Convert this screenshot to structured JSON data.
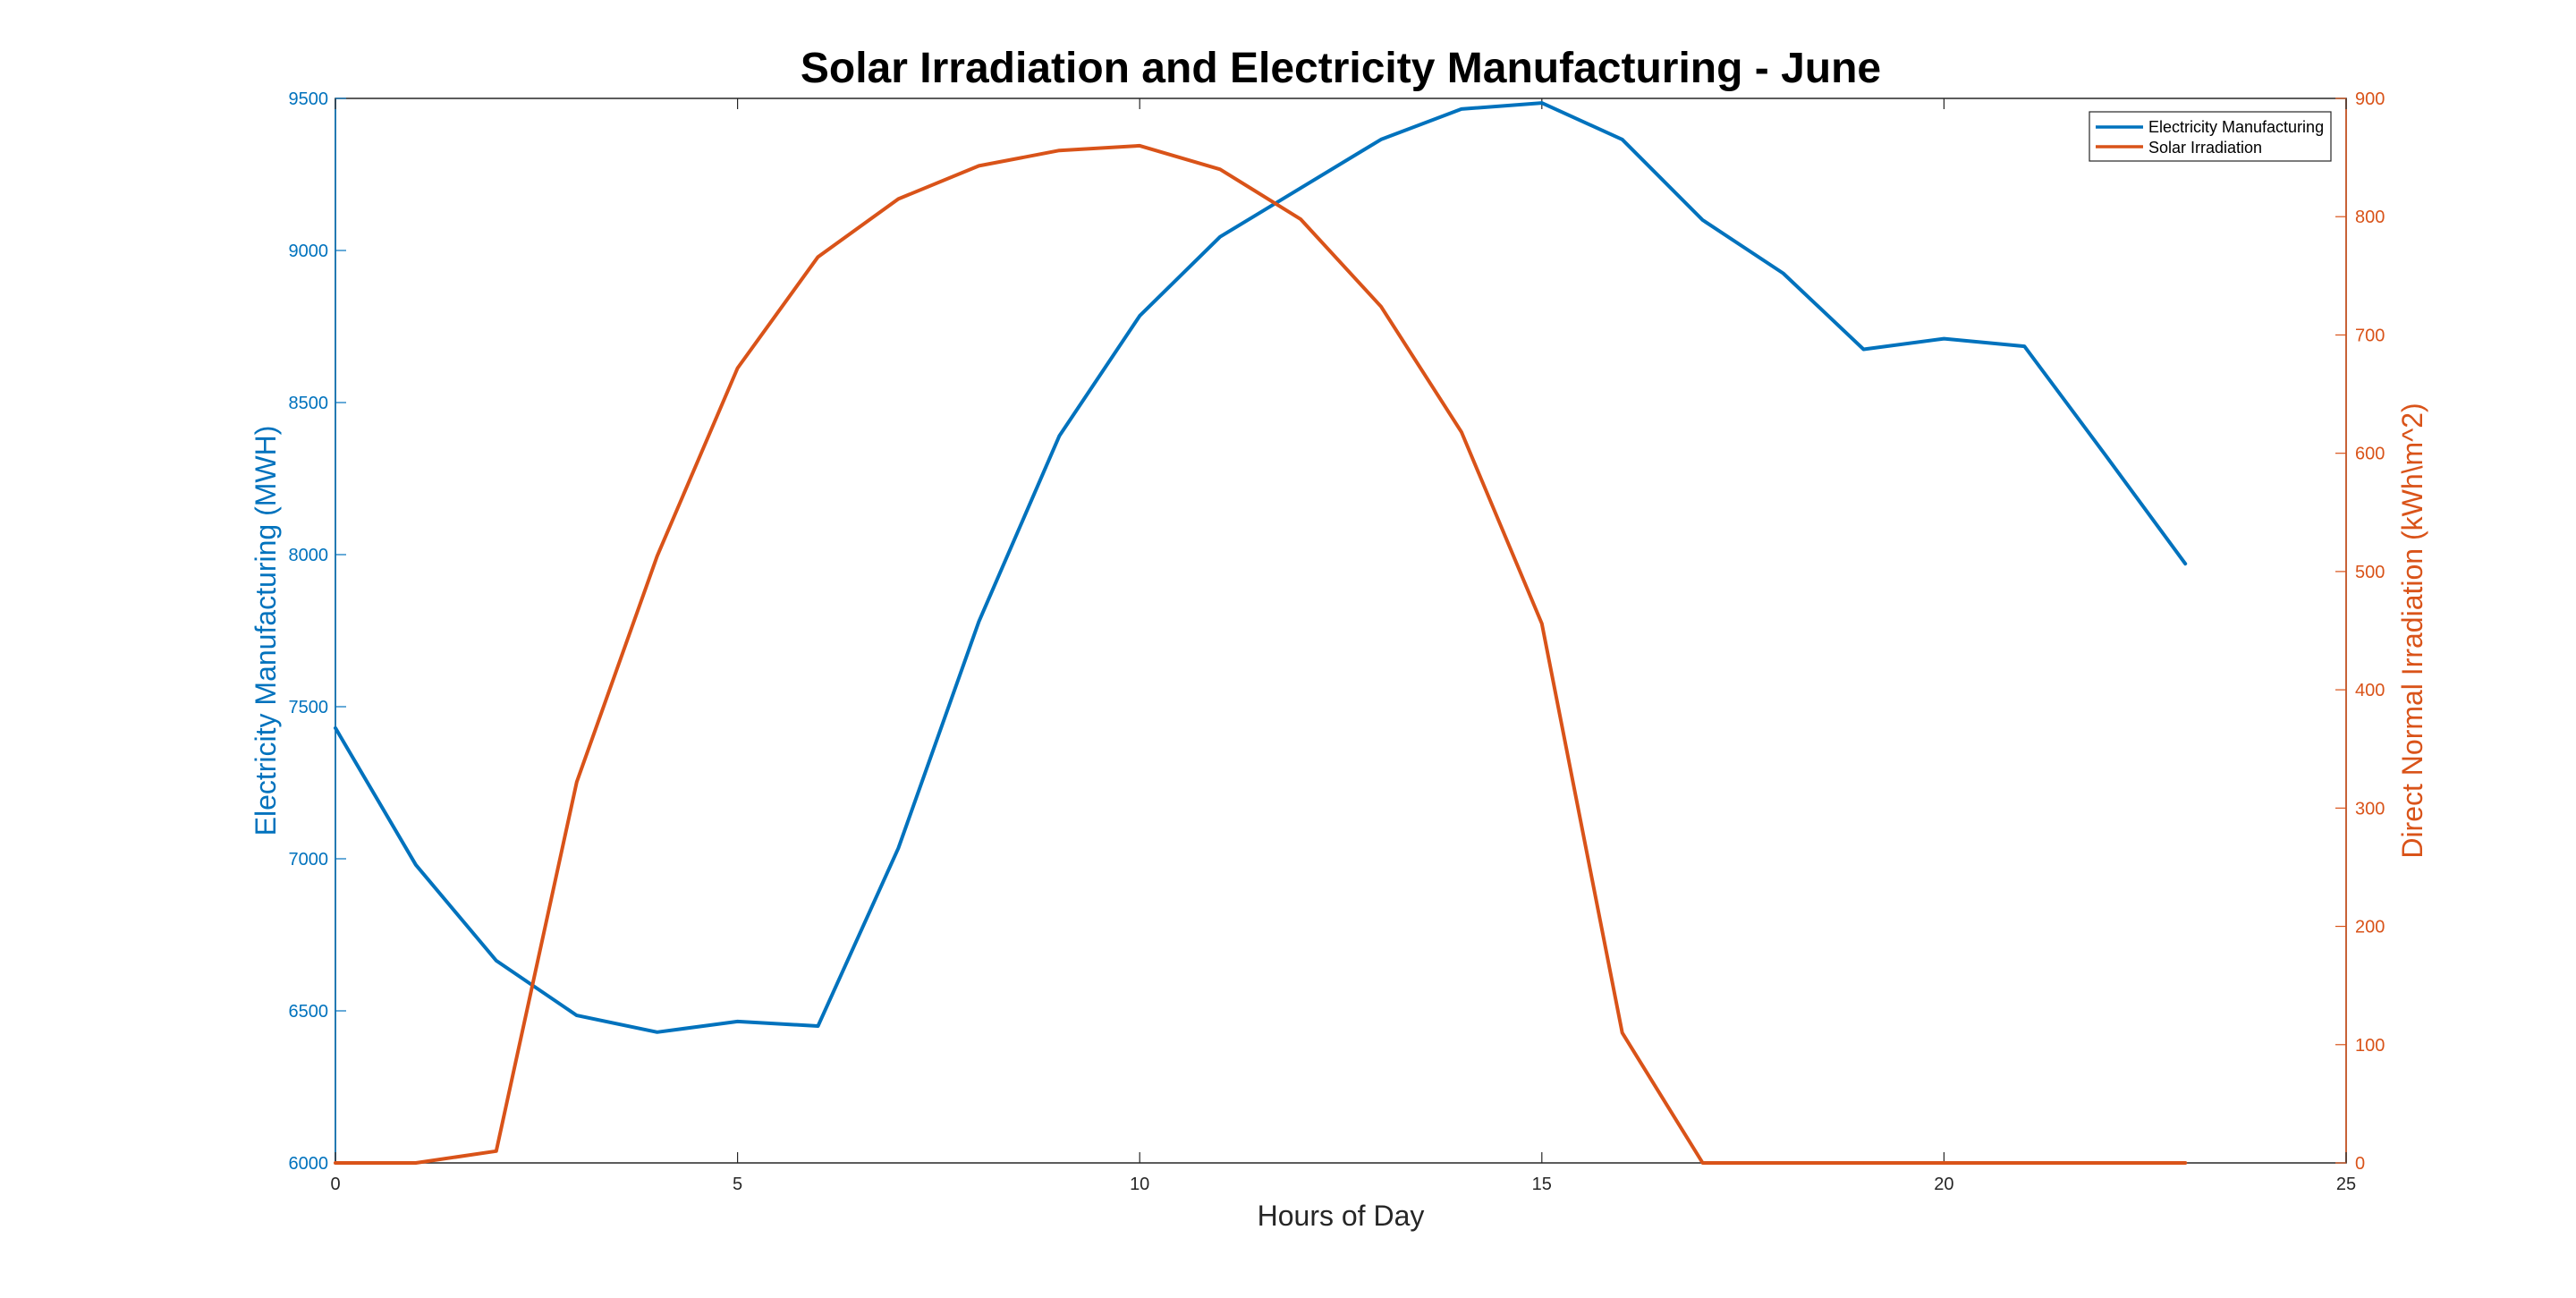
{
  "chart_data": {
    "type": "line",
    "title": "Solar Irradiation and Electricity Manufacturing - June",
    "xlabel": "Hours of Day",
    "ylabel_left": "Electricity Manufacturing (MWH)",
    "ylabel_right": "Direct Normal Irradiation (kWh\\m^2)",
    "xlim": [
      0,
      25
    ],
    "ylim_left": [
      6000,
      9500
    ],
    "ylim_right": [
      0,
      900
    ],
    "x_ticks": [
      0,
      5,
      10,
      15,
      20,
      25
    ],
    "y_ticks_left": [
      6000,
      6500,
      7000,
      7500,
      8000,
      8500,
      9000,
      9500
    ],
    "y_ticks_right": [
      0,
      100,
      200,
      300,
      400,
      500,
      600,
      700,
      800,
      900
    ],
    "grid": false,
    "legend_position": "top-right",
    "colors": {
      "left": "#0072BD",
      "right": "#D95319"
    },
    "series": [
      {
        "name": "Electricity Manufacturing",
        "axis": "left",
        "x": [
          0,
          1,
          2,
          3,
          4,
          5,
          6,
          7,
          8,
          9,
          10,
          11,
          12,
          13,
          14,
          15,
          16,
          17,
          18,
          19,
          20,
          21,
          22,
          23
        ],
        "values": [
          7430,
          6980,
          6665,
          6485,
          6430,
          6465,
          6450,
          7035,
          7780,
          8390,
          8785,
          9045,
          9205,
          9365,
          9465,
          9485,
          9365,
          9100,
          8925,
          8675,
          8710,
          8685,
          8330,
          7970
        ]
      },
      {
        "name": "Solar Irradiation",
        "axis": "right",
        "x": [
          0,
          1,
          2,
          3,
          4,
          5,
          6,
          7,
          8,
          9,
          10,
          11,
          12,
          13,
          14,
          15,
          16,
          17,
          18,
          19,
          20,
          21,
          22,
          23
        ],
        "values": [
          0,
          0,
          10,
          322,
          513,
          672,
          766,
          815,
          843,
          856,
          860,
          840,
          798,
          724,
          618,
          456,
          110,
          0,
          0,
          0,
          0,
          0,
          0,
          0
        ]
      }
    ]
  }
}
